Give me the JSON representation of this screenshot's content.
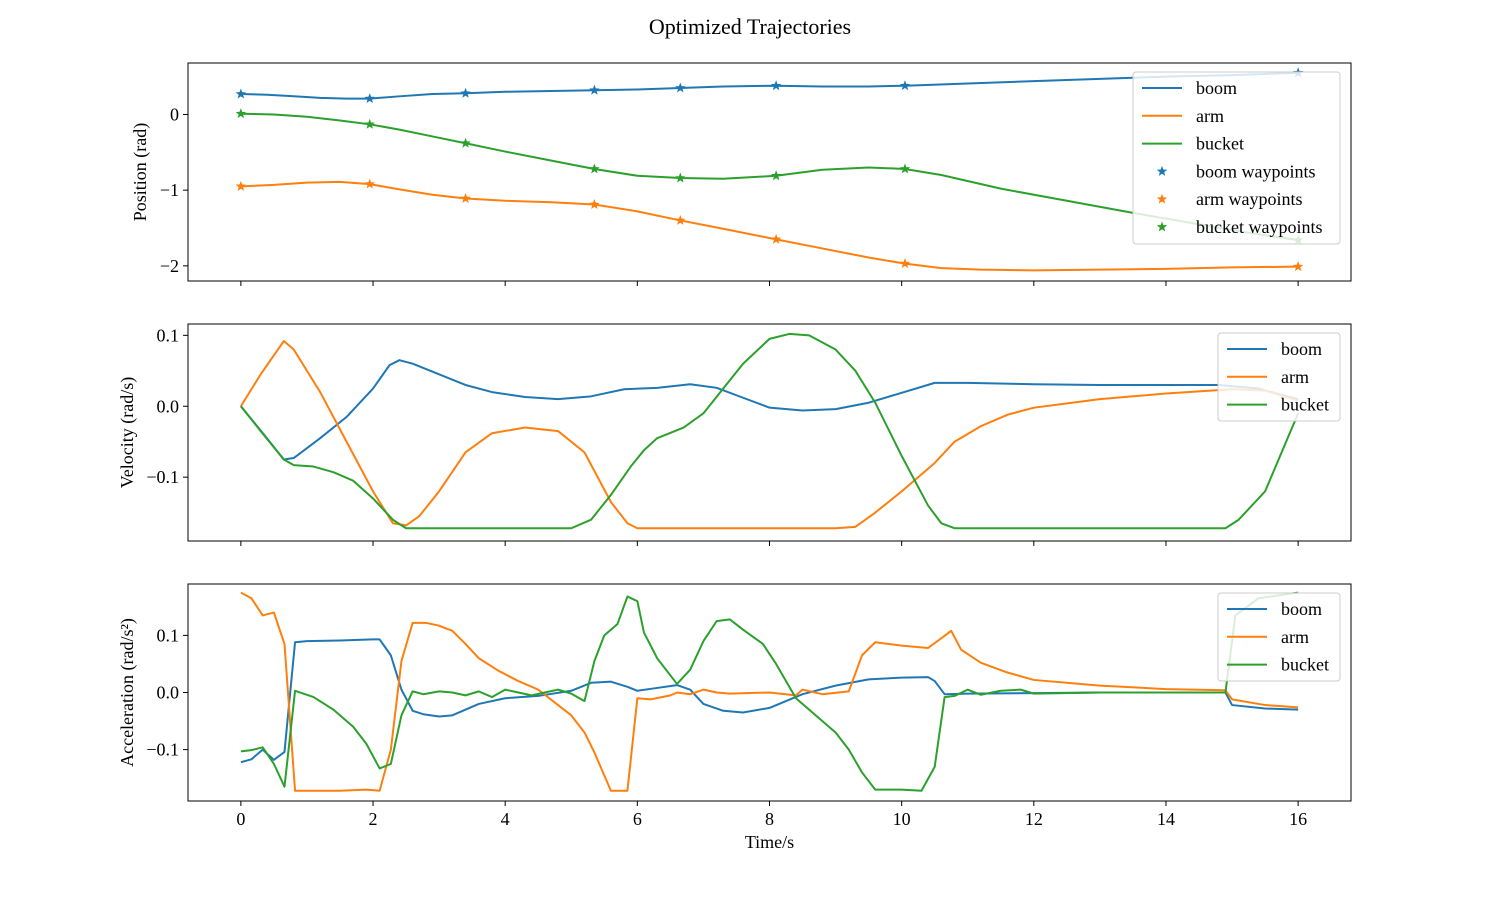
{
  "figure": {
    "title": "Optimized Trajectories"
  },
  "colors": {
    "boom": "#1f77b4",
    "arm": "#ff7f0e",
    "bucket": "#2ca02c"
  },
  "chart_data": [
    {
      "type": "line",
      "ylabel": "Position (rad)",
      "xlabel": "",
      "xlim": [
        -0.8,
        16.8
      ],
      "ylim": [
        -2.2,
        0.68
      ],
      "xticks": [
        0,
        2,
        4,
        6,
        8,
        10,
        12,
        14,
        16
      ],
      "show_x_tick_labels": false,
      "yticks": [
        0,
        -1,
        -2
      ],
      "ytick_labels": [
        "0",
        "−1",
        "−2"
      ],
      "legend": {
        "placement": "top-right",
        "entries": [
          "boom",
          "arm",
          "bucket",
          "boom waypoints",
          "arm waypoints",
          "bucket waypoints"
        ]
      },
      "series": [
        {
          "name": "boom",
          "kind": "line",
          "color": "#1f77b4",
          "x": [
            0,
            0.4,
            0.8,
            1.2,
            1.6,
            1.95,
            2.4,
            2.9,
            3.4,
            4.0,
            4.7,
            5.35,
            6.0,
            6.65,
            7.3,
            8.1,
            8.8,
            9.5,
            10.05,
            11.0,
            12.0,
            13.0,
            14.0,
            15.0,
            16.0
          ],
          "y": [
            0.27,
            0.26,
            0.24,
            0.22,
            0.21,
            0.21,
            0.24,
            0.27,
            0.28,
            0.3,
            0.31,
            0.32,
            0.33,
            0.35,
            0.37,
            0.38,
            0.37,
            0.37,
            0.38,
            0.41,
            0.44,
            0.47,
            0.5,
            0.52,
            0.55
          ]
        },
        {
          "name": "arm",
          "kind": "line",
          "color": "#ff7f0e",
          "x": [
            0,
            0.5,
            1.0,
            1.5,
            1.95,
            2.4,
            2.9,
            3.4,
            4.0,
            4.7,
            5.35,
            6.0,
            6.65,
            7.3,
            8.1,
            8.8,
            9.5,
            10.05,
            10.6,
            11.2,
            12.0,
            13.0,
            14.0,
            15.0,
            16.0
          ],
          "y": [
            -0.95,
            -0.93,
            -0.9,
            -0.89,
            -0.92,
            -0.99,
            -1.06,
            -1.11,
            -1.14,
            -1.16,
            -1.19,
            -1.28,
            -1.4,
            -1.51,
            -1.65,
            -1.77,
            -1.89,
            -1.97,
            -2.03,
            -2.05,
            -2.06,
            -2.05,
            -2.04,
            -2.02,
            -2.01
          ]
        },
        {
          "name": "bucket",
          "kind": "line",
          "color": "#2ca02c",
          "x": [
            0,
            0.5,
            1.0,
            1.5,
            1.95,
            2.4,
            2.9,
            3.4,
            4.0,
            4.7,
            5.35,
            6.0,
            6.65,
            7.3,
            8.1,
            8.8,
            9.5,
            10.05,
            10.6,
            11.5,
            12.5,
            13.5,
            14.5,
            15.3,
            16.0
          ],
          "y": [
            0.01,
            0.0,
            -0.03,
            -0.08,
            -0.13,
            -0.2,
            -0.29,
            -0.38,
            -0.49,
            -0.61,
            -0.72,
            -0.81,
            -0.84,
            -0.85,
            -0.81,
            -0.73,
            -0.7,
            -0.72,
            -0.8,
            -0.98,
            -1.14,
            -1.3,
            -1.45,
            -1.57,
            -1.66
          ]
        },
        {
          "name": "boom waypoints",
          "kind": "marker",
          "color": "#1f77b4",
          "x": [
            0,
            1.95,
            3.4,
            5.35,
            6.65,
            8.1,
            10.05,
            16.0
          ],
          "y": [
            0.27,
            0.21,
            0.28,
            0.32,
            0.35,
            0.38,
            0.38,
            0.55
          ]
        },
        {
          "name": "arm waypoints",
          "kind": "marker",
          "color": "#ff7f0e",
          "x": [
            0,
            1.95,
            3.4,
            5.35,
            6.65,
            8.1,
            10.05,
            16.0
          ],
          "y": [
            -0.95,
            -0.92,
            -1.11,
            -1.19,
            -1.4,
            -1.65,
            -1.97,
            -2.01
          ]
        },
        {
          "name": "bucket waypoints",
          "kind": "marker",
          "color": "#2ca02c",
          "x": [
            0,
            1.95,
            3.4,
            5.35,
            6.65,
            8.1,
            10.05,
            16.0
          ],
          "y": [
            0.01,
            -0.13,
            -0.38,
            -0.72,
            -0.84,
            -0.81,
            -0.72,
            -1.66
          ]
        }
      ]
    },
    {
      "type": "line",
      "ylabel": "Velocity (rad/s)",
      "xlabel": "",
      "xlim": [
        -0.8,
        16.8
      ],
      "ylim": [
        -0.19,
        0.116
      ],
      "xticks": [
        0,
        2,
        4,
        6,
        8,
        10,
        12,
        14,
        16
      ],
      "show_x_tick_labels": false,
      "yticks": [
        0.1,
        0.0,
        -0.1
      ],
      "ytick_labels": [
        "0.1",
        "0.0",
        "−0.1"
      ],
      "legend": {
        "placement": "top-right",
        "entries": [
          "boom",
          "arm",
          "bucket"
        ]
      },
      "series": [
        {
          "name": "boom",
          "kind": "line",
          "color": "#1f77b4",
          "x": [
            0,
            0.35,
            0.65,
            0.8,
            1.2,
            1.6,
            2.0,
            2.25,
            2.4,
            2.6,
            3.0,
            3.4,
            3.8,
            4.3,
            4.8,
            5.3,
            5.8,
            6.3,
            6.8,
            7.2,
            7.6,
            8.0,
            8.5,
            9.0,
            9.5,
            10.0,
            10.5,
            11.0,
            12.0,
            13.0,
            14.0,
            14.8,
            15.4,
            16.0
          ],
          "y": [
            0.0,
            -0.04,
            -0.075,
            -0.073,
            -0.045,
            -0.015,
            0.025,
            0.058,
            0.065,
            0.06,
            0.045,
            0.03,
            0.02,
            0.013,
            0.01,
            0.014,
            0.024,
            0.026,
            0.031,
            0.026,
            0.012,
            -0.002,
            -0.006,
            -0.004,
            0.005,
            0.019,
            0.033,
            0.033,
            0.031,
            0.03,
            0.03,
            0.03,
            0.025,
            0.01
          ]
        },
        {
          "name": "arm",
          "kind": "line",
          "color": "#ff7f0e",
          "x": [
            0,
            0.3,
            0.65,
            0.8,
            1.2,
            1.6,
            2.0,
            2.3,
            2.5,
            2.7,
            3.0,
            3.4,
            3.8,
            4.3,
            4.8,
            5.2,
            5.6,
            5.85,
            6.0,
            7.0,
            8.0,
            9.0,
            9.3,
            9.6,
            10.0,
            10.5,
            10.8,
            11.2,
            11.6,
            12.0,
            13.0,
            14.0,
            15.0,
            15.5,
            16.0
          ],
          "y": [
            0.0,
            0.045,
            0.092,
            0.08,
            0.02,
            -0.05,
            -0.12,
            -0.165,
            -0.168,
            -0.155,
            -0.12,
            -0.065,
            -0.038,
            -0.03,
            -0.035,
            -0.065,
            -0.135,
            -0.165,
            -0.172,
            -0.172,
            -0.172,
            -0.172,
            -0.17,
            -0.15,
            -0.12,
            -0.08,
            -0.05,
            -0.028,
            -0.012,
            -0.002,
            0.01,
            0.018,
            0.024,
            0.022,
            0.008
          ]
        },
        {
          "name": "bucket",
          "kind": "line",
          "color": "#2ca02c",
          "x": [
            0,
            0.3,
            0.65,
            0.8,
            1.1,
            1.4,
            1.7,
            2.0,
            2.3,
            2.5,
            3.0,
            4.0,
            5.0,
            5.3,
            5.6,
            5.9,
            6.1,
            6.3,
            6.7,
            7.0,
            7.3,
            7.6,
            8.0,
            8.3,
            8.6,
            9.0,
            9.3,
            9.6,
            10.0,
            10.4,
            10.6,
            10.8,
            12.0,
            13.0,
            14.0,
            14.9,
            15.1,
            15.5,
            16.0
          ],
          "y": [
            0.0,
            -0.035,
            -0.075,
            -0.083,
            -0.085,
            -0.093,
            -0.105,
            -0.13,
            -0.16,
            -0.172,
            -0.172,
            -0.172,
            -0.172,
            -0.16,
            -0.125,
            -0.085,
            -0.062,
            -0.045,
            -0.03,
            -0.01,
            0.025,
            0.06,
            0.095,
            0.102,
            0.1,
            0.08,
            0.05,
            0.005,
            -0.07,
            -0.14,
            -0.165,
            -0.172,
            -0.172,
            -0.172,
            -0.172,
            -0.172,
            -0.16,
            -0.12,
            -0.01
          ]
        }
      ]
    },
    {
      "type": "line",
      "ylabel": "Acceleration (rad/s²)",
      "xlabel": "Time/s",
      "xlim": [
        -0.8,
        16.8
      ],
      "ylim": [
        -0.19,
        0.19
      ],
      "xticks": [
        0,
        2,
        4,
        6,
        8,
        10,
        12,
        14,
        16
      ],
      "xtick_labels": [
        "0",
        "2",
        "4",
        "6",
        "8",
        "10",
        "12",
        "14",
        "16"
      ],
      "show_x_tick_labels": true,
      "yticks": [
        0.1,
        0.0,
        -0.1
      ],
      "ytick_labels": [
        "0.1",
        "0.0",
        "−0.1"
      ],
      "legend": {
        "placement": "top-right",
        "entries": [
          "boom",
          "arm",
          "bucket"
        ]
      },
      "series": [
        {
          "name": "boom",
          "kind": "line",
          "color": "#1f77b4",
          "x": [
            0,
            0.16,
            0.33,
            0.5,
            0.66,
            0.82,
            1.0,
            1.5,
            2.0,
            2.1,
            2.27,
            2.43,
            2.6,
            2.76,
            3.0,
            3.2,
            3.6,
            4.0,
            4.5,
            5.0,
            5.3,
            5.6,
            5.85,
            6.0,
            6.3,
            6.6,
            6.8,
            7.0,
            7.3,
            7.6,
            8.0,
            8.5,
            9.0,
            9.5,
            10.0,
            10.4,
            10.5,
            10.65,
            11.0,
            12.0,
            13.0,
            14.0,
            14.9,
            15.0,
            15.5,
            16.0
          ],
          "y": [
            -0.122,
            -0.117,
            -0.1,
            -0.118,
            -0.104,
            0.088,
            0.09,
            0.091,
            0.093,
            0.093,
            0.065,
            0.005,
            -0.032,
            -0.038,
            -0.042,
            -0.04,
            -0.02,
            -0.01,
            -0.006,
            0.003,
            0.017,
            0.019,
            0.01,
            0.003,
            0.008,
            0.013,
            0.005,
            -0.02,
            -0.032,
            -0.035,
            -0.027,
            -0.003,
            0.012,
            0.023,
            0.026,
            0.027,
            0.02,
            -0.003,
            -0.002,
            -0.001,
            0.0,
            0.0,
            0.0,
            -0.022,
            -0.028,
            -0.03
          ]
        },
        {
          "name": "arm",
          "kind": "line",
          "color": "#ff7f0e",
          "x": [
            0,
            0.16,
            0.33,
            0.5,
            0.66,
            0.82,
            1.0,
            1.5,
            1.9,
            2.1,
            2.27,
            2.43,
            2.6,
            2.8,
            3.0,
            3.2,
            3.4,
            3.6,
            3.9,
            4.2,
            4.5,
            4.8,
            5.0,
            5.2,
            5.35,
            5.6,
            5.85,
            6.0,
            6.2,
            6.5,
            6.6,
            6.8,
            7.0,
            7.2,
            7.4,
            8.0,
            8.4,
            8.5,
            8.8,
            9.2,
            9.4,
            9.6,
            10.0,
            10.4,
            10.6,
            10.75,
            10.9,
            11.2,
            11.6,
            12.0,
            13.0,
            14.0,
            14.9,
            15.0,
            15.5,
            16.0
          ],
          "y": [
            0.175,
            0.165,
            0.135,
            0.14,
            0.085,
            -0.172,
            -0.172,
            -0.172,
            -0.17,
            -0.172,
            -0.1,
            0.055,
            0.122,
            0.122,
            0.117,
            0.108,
            0.085,
            0.06,
            0.038,
            0.02,
            0.005,
            -0.022,
            -0.04,
            -0.07,
            -0.105,
            -0.172,
            -0.172,
            -0.01,
            -0.012,
            -0.005,
            0.0,
            -0.003,
            0.005,
            0.0,
            -0.002,
            0.0,
            -0.005,
            0.005,
            -0.003,
            0.002,
            0.065,
            0.088,
            0.082,
            0.078,
            0.095,
            0.108,
            0.075,
            0.052,
            0.035,
            0.022,
            0.012,
            0.006,
            0.004,
            -0.012,
            -0.022,
            -0.026
          ]
        },
        {
          "name": "bucket",
          "kind": "line",
          "color": "#2ca02c",
          "x": [
            0,
            0.16,
            0.33,
            0.5,
            0.66,
            0.82,
            1.1,
            1.4,
            1.7,
            1.9,
            2.1,
            2.27,
            2.43,
            2.6,
            2.76,
            3.0,
            3.2,
            3.4,
            3.6,
            3.8,
            4.0,
            4.2,
            4.4,
            4.8,
            5.0,
            5.2,
            5.35,
            5.5,
            5.7,
            5.85,
            6.0,
            6.1,
            6.3,
            6.6,
            6.8,
            7.0,
            7.2,
            7.4,
            7.6,
            7.9,
            8.1,
            8.4,
            8.7,
            9.0,
            9.2,
            9.4,
            9.6,
            10.0,
            10.3,
            10.5,
            10.65,
            10.8,
            11.0,
            11.2,
            11.5,
            11.8,
            12.0,
            13.0,
            14.0,
            14.9,
            15.05,
            15.4,
            16.0
          ],
          "y": [
            -0.103,
            -0.101,
            -0.096,
            -0.125,
            -0.165,
            0.003,
            -0.008,
            -0.03,
            -0.06,
            -0.09,
            -0.133,
            -0.125,
            -0.04,
            0.002,
            -0.003,
            0.002,
            0.0,
            -0.005,
            0.002,
            -0.008,
            0.005,
            0.0,
            -0.005,
            0.005,
            -0.002,
            -0.015,
            0.055,
            0.1,
            0.12,
            0.168,
            0.16,
            0.105,
            0.06,
            0.015,
            0.04,
            0.09,
            0.125,
            0.128,
            0.11,
            0.085,
            0.05,
            -0.01,
            -0.04,
            -0.07,
            -0.1,
            -0.14,
            -0.17,
            -0.17,
            -0.172,
            -0.13,
            -0.008,
            -0.006,
            0.005,
            -0.004,
            0.003,
            0.005,
            -0.002,
            0.0,
            0.0,
            0.0,
            0.135,
            0.165,
            0.175
          ]
        }
      ]
    }
  ]
}
